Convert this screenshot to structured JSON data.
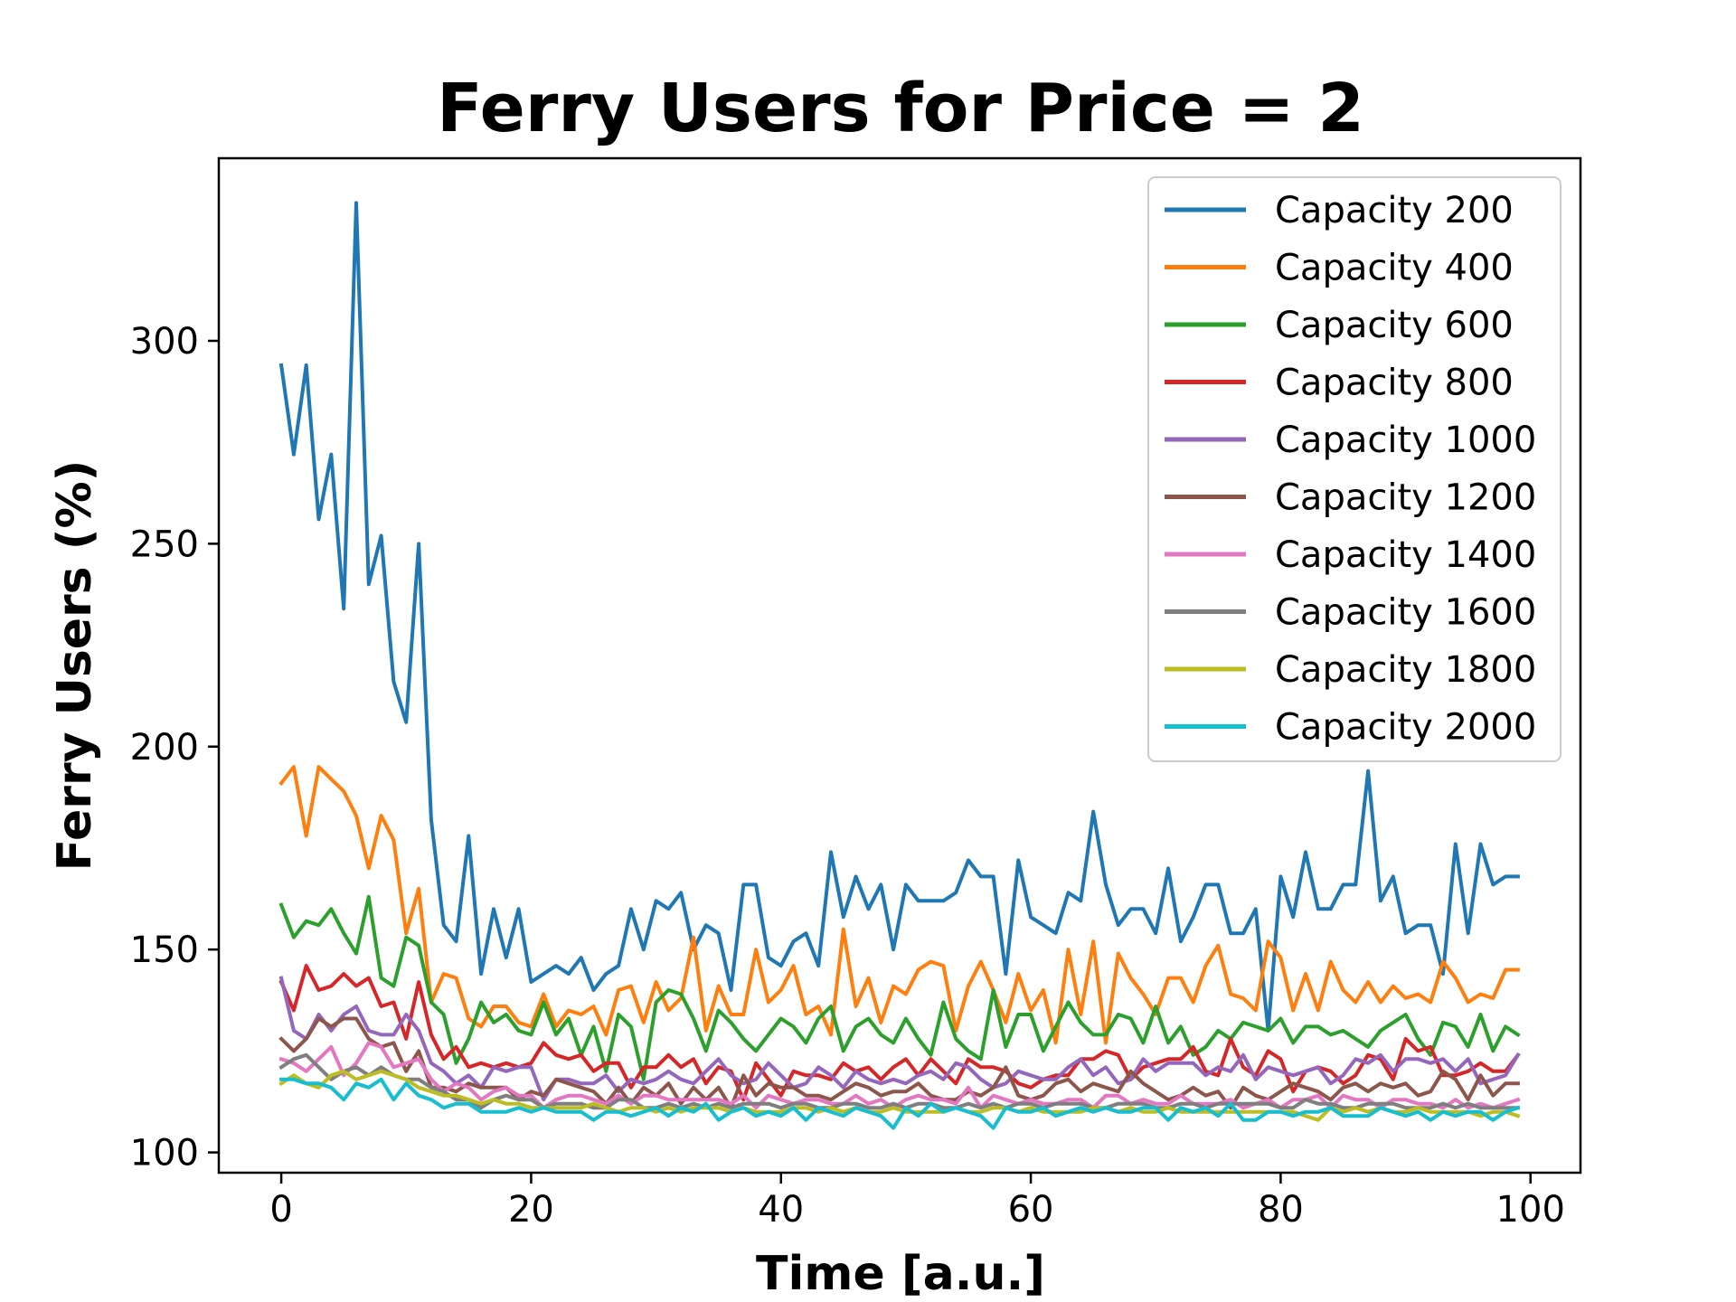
{
  "chart_data": {
    "type": "line",
    "title": "Ferry Users for Price = 2",
    "xlabel": "Time [a.u.]",
    "ylabel": "Ferry Users (%)",
    "xlim": [
      -5,
      104
    ],
    "ylim": [
      95,
      345
    ],
    "xticks": [
      0,
      20,
      40,
      60,
      80,
      100
    ],
    "yticks": [
      100,
      150,
      200,
      250,
      300
    ],
    "grid": false,
    "legend_position": "top-right",
    "series": [
      {
        "name": "Capacity 200",
        "color": "#1f77b4",
        "values": [
          294,
          272,
          294,
          256,
          272,
          234,
          334,
          240,
          252,
          216,
          206,
          250,
          182,
          156,
          152,
          178,
          144,
          160,
          148,
          160,
          142,
          144,
          146,
          144,
          148,
          140,
          144,
          146,
          160,
          150,
          162,
          160,
          164,
          150,
          156,
          154,
          140,
          166,
          166,
          148,
          146,
          152,
          154,
          146,
          174,
          158,
          168,
          160,
          166,
          150,
          166,
          162,
          162,
          162,
          164,
          172,
          168,
          168,
          144,
          172,
          158,
          156,
          154,
          164,
          162,
          184,
          166,
          156,
          160,
          160,
          154,
          170,
          152,
          158,
          166,
          166,
          154,
          154,
          160,
          130,
          168,
          158,
          174,
          160,
          160,
          166,
          166,
          194,
          162,
          168,
          154,
          156,
          156,
          144,
          176,
          154,
          176,
          166,
          168,
          168
        ]
      },
      {
        "name": "Capacity 400",
        "color": "#ff7f0e",
        "values": [
          191,
          195,
          178,
          195,
          192,
          189,
          183,
          170,
          183,
          177,
          154,
          165,
          137,
          144,
          143,
          133,
          131,
          136,
          136,
          132,
          131,
          139,
          131,
          135,
          134,
          136,
          129,
          140,
          141,
          132,
          142,
          135,
          138,
          153,
          130,
          141,
          134,
          134,
          150,
          137,
          140,
          146,
          134,
          136,
          129,
          155,
          136,
          143,
          132,
          141,
          139,
          145,
          147,
          146,
          130,
          141,
          147,
          140,
          132,
          144,
          135,
          140,
          127,
          150,
          134,
          152,
          127,
          149,
          143,
          139,
          134,
          143,
          143,
          137,
          146,
          151,
          139,
          138,
          135,
          152,
          148,
          135,
          144,
          135,
          147,
          140,
          137,
          142,
          137,
          141,
          138,
          139,
          137,
          147,
          143,
          137,
          139,
          138,
          145,
          145
        ]
      },
      {
        "name": "Capacity 600",
        "color": "#2ca02c",
        "values": [
          161,
          153,
          157,
          156,
          160,
          154,
          149,
          163,
          143,
          141,
          153,
          151,
          137,
          134,
          122,
          128,
          137,
          132,
          134,
          130,
          129,
          137,
          129,
          133,
          124,
          131,
          120,
          134,
          131,
          118,
          137,
          140,
          139,
          133,
          125,
          135,
          132,
          128,
          125,
          129,
          133,
          131,
          127,
          133,
          136,
          125,
          131,
          133,
          129,
          127,
          133,
          128,
          124,
          137,
          128,
          125,
          123,
          140,
          126,
          134,
          134,
          125,
          131,
          137,
          132,
          129,
          129,
          134,
          133,
          127,
          136,
          127,
          131,
          124,
          126,
          130,
          128,
          132,
          131,
          130,
          133,
          127,
          131,
          131,
          129,
          130,
          128,
          126,
          130,
          132,
          134,
          128,
          124,
          132,
          131,
          126,
          134,
          125,
          131,
          129
        ]
      },
      {
        "name": "Capacity 800",
        "color": "#d62728",
        "values": [
          142,
          135,
          146,
          140,
          141,
          144,
          141,
          143,
          136,
          137,
          128,
          142,
          129,
          123,
          126,
          121,
          122,
          121,
          122,
          121,
          122,
          127,
          124,
          123,
          124,
          120,
          122,
          122,
          116,
          121,
          121,
          124,
          121,
          123,
          117,
          121,
          120,
          113,
          122,
          118,
          114,
          120,
          119,
          119,
          118,
          122,
          120,
          121,
          118,
          121,
          123,
          119,
          123,
          120,
          117,
          123,
          121,
          121,
          120,
          117,
          116,
          118,
          119,
          119,
          123,
          123,
          125,
          124,
          118,
          121,
          122,
          123,
          123,
          126,
          120,
          119,
          128,
          121,
          119,
          125,
          123,
          115,
          120,
          121,
          120,
          117,
          119,
          124,
          123,
          118,
          128,
          125,
          126,
          119,
          119,
          120,
          122,
          120,
          120,
          124
        ]
      },
      {
        "name": "Capacity 1000",
        "color": "#9467bd",
        "values": [
          143,
          130,
          128,
          134,
          130,
          134,
          136,
          130,
          129,
          129,
          134,
          130,
          122,
          120,
          117,
          119,
          116,
          121,
          120,
          121,
          121,
          113,
          118,
          118,
          117,
          117,
          119,
          115,
          118,
          117,
          118,
          120,
          118,
          117,
          120,
          123,
          119,
          117,
          118,
          122,
          119,
          116,
          117,
          121,
          119,
          116,
          120,
          118,
          117,
          118,
          117,
          119,
          120,
          118,
          122,
          121,
          118,
          116,
          117,
          120,
          119,
          118,
          118,
          121,
          123,
          119,
          121,
          117,
          118,
          123,
          120,
          122,
          122,
          122,
          119,
          121,
          120,
          124,
          118,
          121,
          120,
          119,
          120,
          121,
          117,
          119,
          123,
          122,
          124,
          120,
          123,
          123,
          122,
          123,
          120,
          123,
          117,
          118,
          119,
          124
        ]
      },
      {
        "name": "Capacity 1200",
        "color": "#8c564b",
        "values": [
          128,
          125,
          128,
          133,
          131,
          133,
          133,
          128,
          126,
          127,
          120,
          125,
          116,
          116,
          115,
          117,
          116,
          116,
          116,
          113,
          115,
          114,
          118,
          117,
          116,
          115,
          112,
          116,
          112,
          116,
          114,
          117,
          112,
          116,
          113,
          116,
          111,
          119,
          114,
          117,
          116,
          116,
          114,
          114,
          113,
          115,
          117,
          116,
          114,
          115,
          115,
          117,
          114,
          113,
          113,
          115,
          114,
          116,
          121,
          114,
          113,
          114,
          117,
          118,
          115,
          117,
          116,
          115,
          120,
          117,
          115,
          113,
          114,
          116,
          114,
          115,
          111,
          116,
          114,
          113,
          115,
          117,
          116,
          115,
          113,
          116,
          117,
          115,
          117,
          116,
          117,
          114,
          115,
          120,
          118,
          113,
          119,
          114,
          117,
          117
        ]
      },
      {
        "name": "Capacity 1400",
        "color": "#e377c2",
        "values": [
          123,
          122,
          120,
          123,
          126,
          119,
          122,
          127,
          126,
          121,
          122,
          123,
          118,
          115,
          117,
          116,
          113,
          115,
          116,
          114,
          114,
          111,
          113,
          114,
          114,
          113,
          112,
          114,
          112,
          114,
          114,
          113,
          113,
          113,
          113,
          113,
          112,
          114,
          111,
          114,
          113,
          112,
          113,
          113,
          112,
          112,
          114,
          112,
          113,
          111,
          113,
          114,
          113,
          113,
          112,
          116,
          111,
          114,
          113,
          112,
          113,
          112,
          112,
          113,
          113,
          111,
          114,
          114,
          112,
          113,
          112,
          112,
          114,
          112,
          112,
          112,
          113,
          111,
          112,
          113,
          111,
          113,
          113,
          114,
          111,
          114,
          113,
          113,
          111,
          113,
          113,
          112,
          112,
          111,
          113,
          111,
          112,
          111,
          112,
          113
        ]
      },
      {
        "name": "Capacity 1600",
        "color": "#7f7f7f",
        "values": [
          121,
          123,
          124,
          121,
          118,
          120,
          121,
          119,
          121,
          119,
          118,
          118,
          116,
          115,
          113,
          113,
          111,
          113,
          114,
          113,
          113,
          111,
          112,
          112,
          112,
          111,
          111,
          113,
          113,
          111,
          111,
          112,
          111,
          112,
          111,
          112,
          111,
          112,
          112,
          112,
          111,
          112,
          112,
          111,
          111,
          112,
          112,
          111,
          111,
          112,
          111,
          112,
          112,
          111,
          111,
          112,
          111,
          112,
          111,
          112,
          112,
          111,
          112,
          112,
          112,
          111,
          111,
          112,
          112,
          112,
          111,
          111,
          112,
          112,
          111,
          112,
          112,
          112,
          112,
          112,
          111,
          111,
          113,
          112,
          112,
          111,
          111,
          112,
          112,
          112,
          111,
          111,
          111,
          112,
          111,
          112,
          111,
          111,
          111,
          111
        ]
      },
      {
        "name": "Capacity 1800",
        "color": "#bcbd22",
        "values": [
          117,
          119,
          117,
          116,
          119,
          120,
          118,
          119,
          120,
          119,
          118,
          116,
          115,
          114,
          114,
          113,
          112,
          113,
          112,
          112,
          111,
          111,
          111,
          111,
          111,
          112,
          111,
          110,
          111,
          111,
          110,
          111,
          110,
          111,
          111,
          111,
          110,
          111,
          110,
          110,
          110,
          111,
          111,
          110,
          111,
          110,
          111,
          110,
          110,
          111,
          110,
          110,
          110,
          110,
          111,
          110,
          110,
          111,
          111,
          110,
          111,
          110,
          110,
          110,
          110,
          111,
          111,
          110,
          111,
          110,
          110,
          111,
          110,
          110,
          110,
          110,
          110,
          110,
          110,
          110,
          110,
          110,
          109,
          108,
          111,
          110,
          111,
          110,
          111,
          110,
          110,
          111,
          110,
          110,
          110,
          110,
          109,
          110,
          110,
          109
        ]
      },
      {
        "name": "Capacity 2000",
        "color": "#17becf",
        "values": [
          118,
          118,
          117,
          117,
          116,
          113,
          117,
          116,
          118,
          113,
          117,
          114,
          113,
          111,
          112,
          112,
          110,
          110,
          110,
          111,
          110,
          111,
          110,
          110,
          110,
          108,
          110,
          110,
          109,
          110,
          111,
          109,
          111,
          110,
          112,
          108,
          110,
          111,
          109,
          110,
          109,
          111,
          108,
          111,
          110,
          109,
          111,
          110,
          109,
          106,
          111,
          109,
          112,
          110,
          111,
          110,
          109,
          106,
          111,
          110,
          110,
          111,
          109,
          110,
          111,
          110,
          111,
          110,
          110,
          111,
          111,
          108,
          111,
          110,
          111,
          109,
          112,
          108,
          108,
          110,
          110,
          109,
          110,
          110,
          111,
          109,
          109,
          109,
          111,
          110,
          109,
          110,
          108,
          110,
          109,
          110,
          110,
          108,
          110,
          111
        ]
      }
    ]
  }
}
